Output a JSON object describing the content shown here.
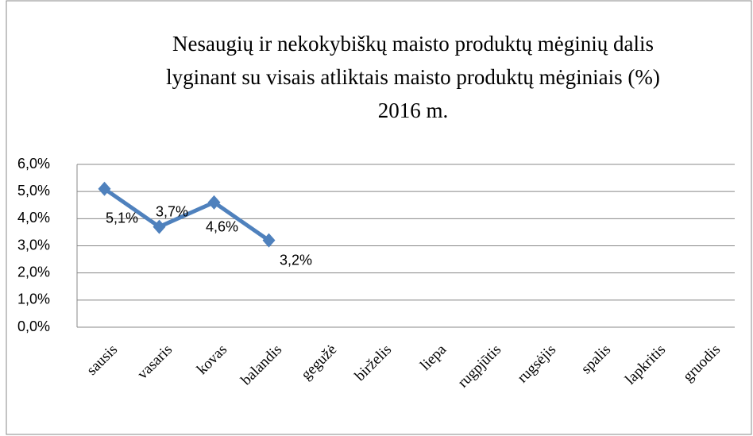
{
  "chart_data": {
    "type": "line",
    "title": [
      "Nesaugių ir nekokybiškų maisto produktų mėginių dalis",
      "lyginant su visais atliktais maisto produktų mėginiais (%)",
      "2016 m."
    ],
    "categories": [
      "sausis",
      "vasaris",
      "kovas",
      "balandis",
      "gegužė",
      "birželis",
      "liepa",
      "rugpjūtis",
      "rugsėjis",
      "spalis",
      "lapkritis",
      "gruodis"
    ],
    "series": [
      {
        "color": "#4f81bd",
        "values": [
          5.1,
          3.7,
          4.6,
          3.2,
          null,
          null,
          null,
          null,
          null,
          null,
          null,
          null
        ],
        "value_labels": [
          "5,1%",
          "3,7%",
          "4,6%",
          "3,2%",
          null,
          null,
          null,
          null,
          null,
          null,
          null,
          null
        ]
      }
    ],
    "ylim": [
      0,
      6
    ],
    "yticks": [
      {
        "value": 0,
        "label": "0,0%"
      },
      {
        "value": 1,
        "label": "1,0%"
      },
      {
        "value": 2,
        "label": "2,0%"
      },
      {
        "value": 3,
        "label": "3,0%"
      },
      {
        "value": 4,
        "label": "4,0%"
      },
      {
        "value": 5,
        "label": "5,0%"
      },
      {
        "value": 6,
        "label": "6,0%"
      }
    ],
    "grid": true
  }
}
